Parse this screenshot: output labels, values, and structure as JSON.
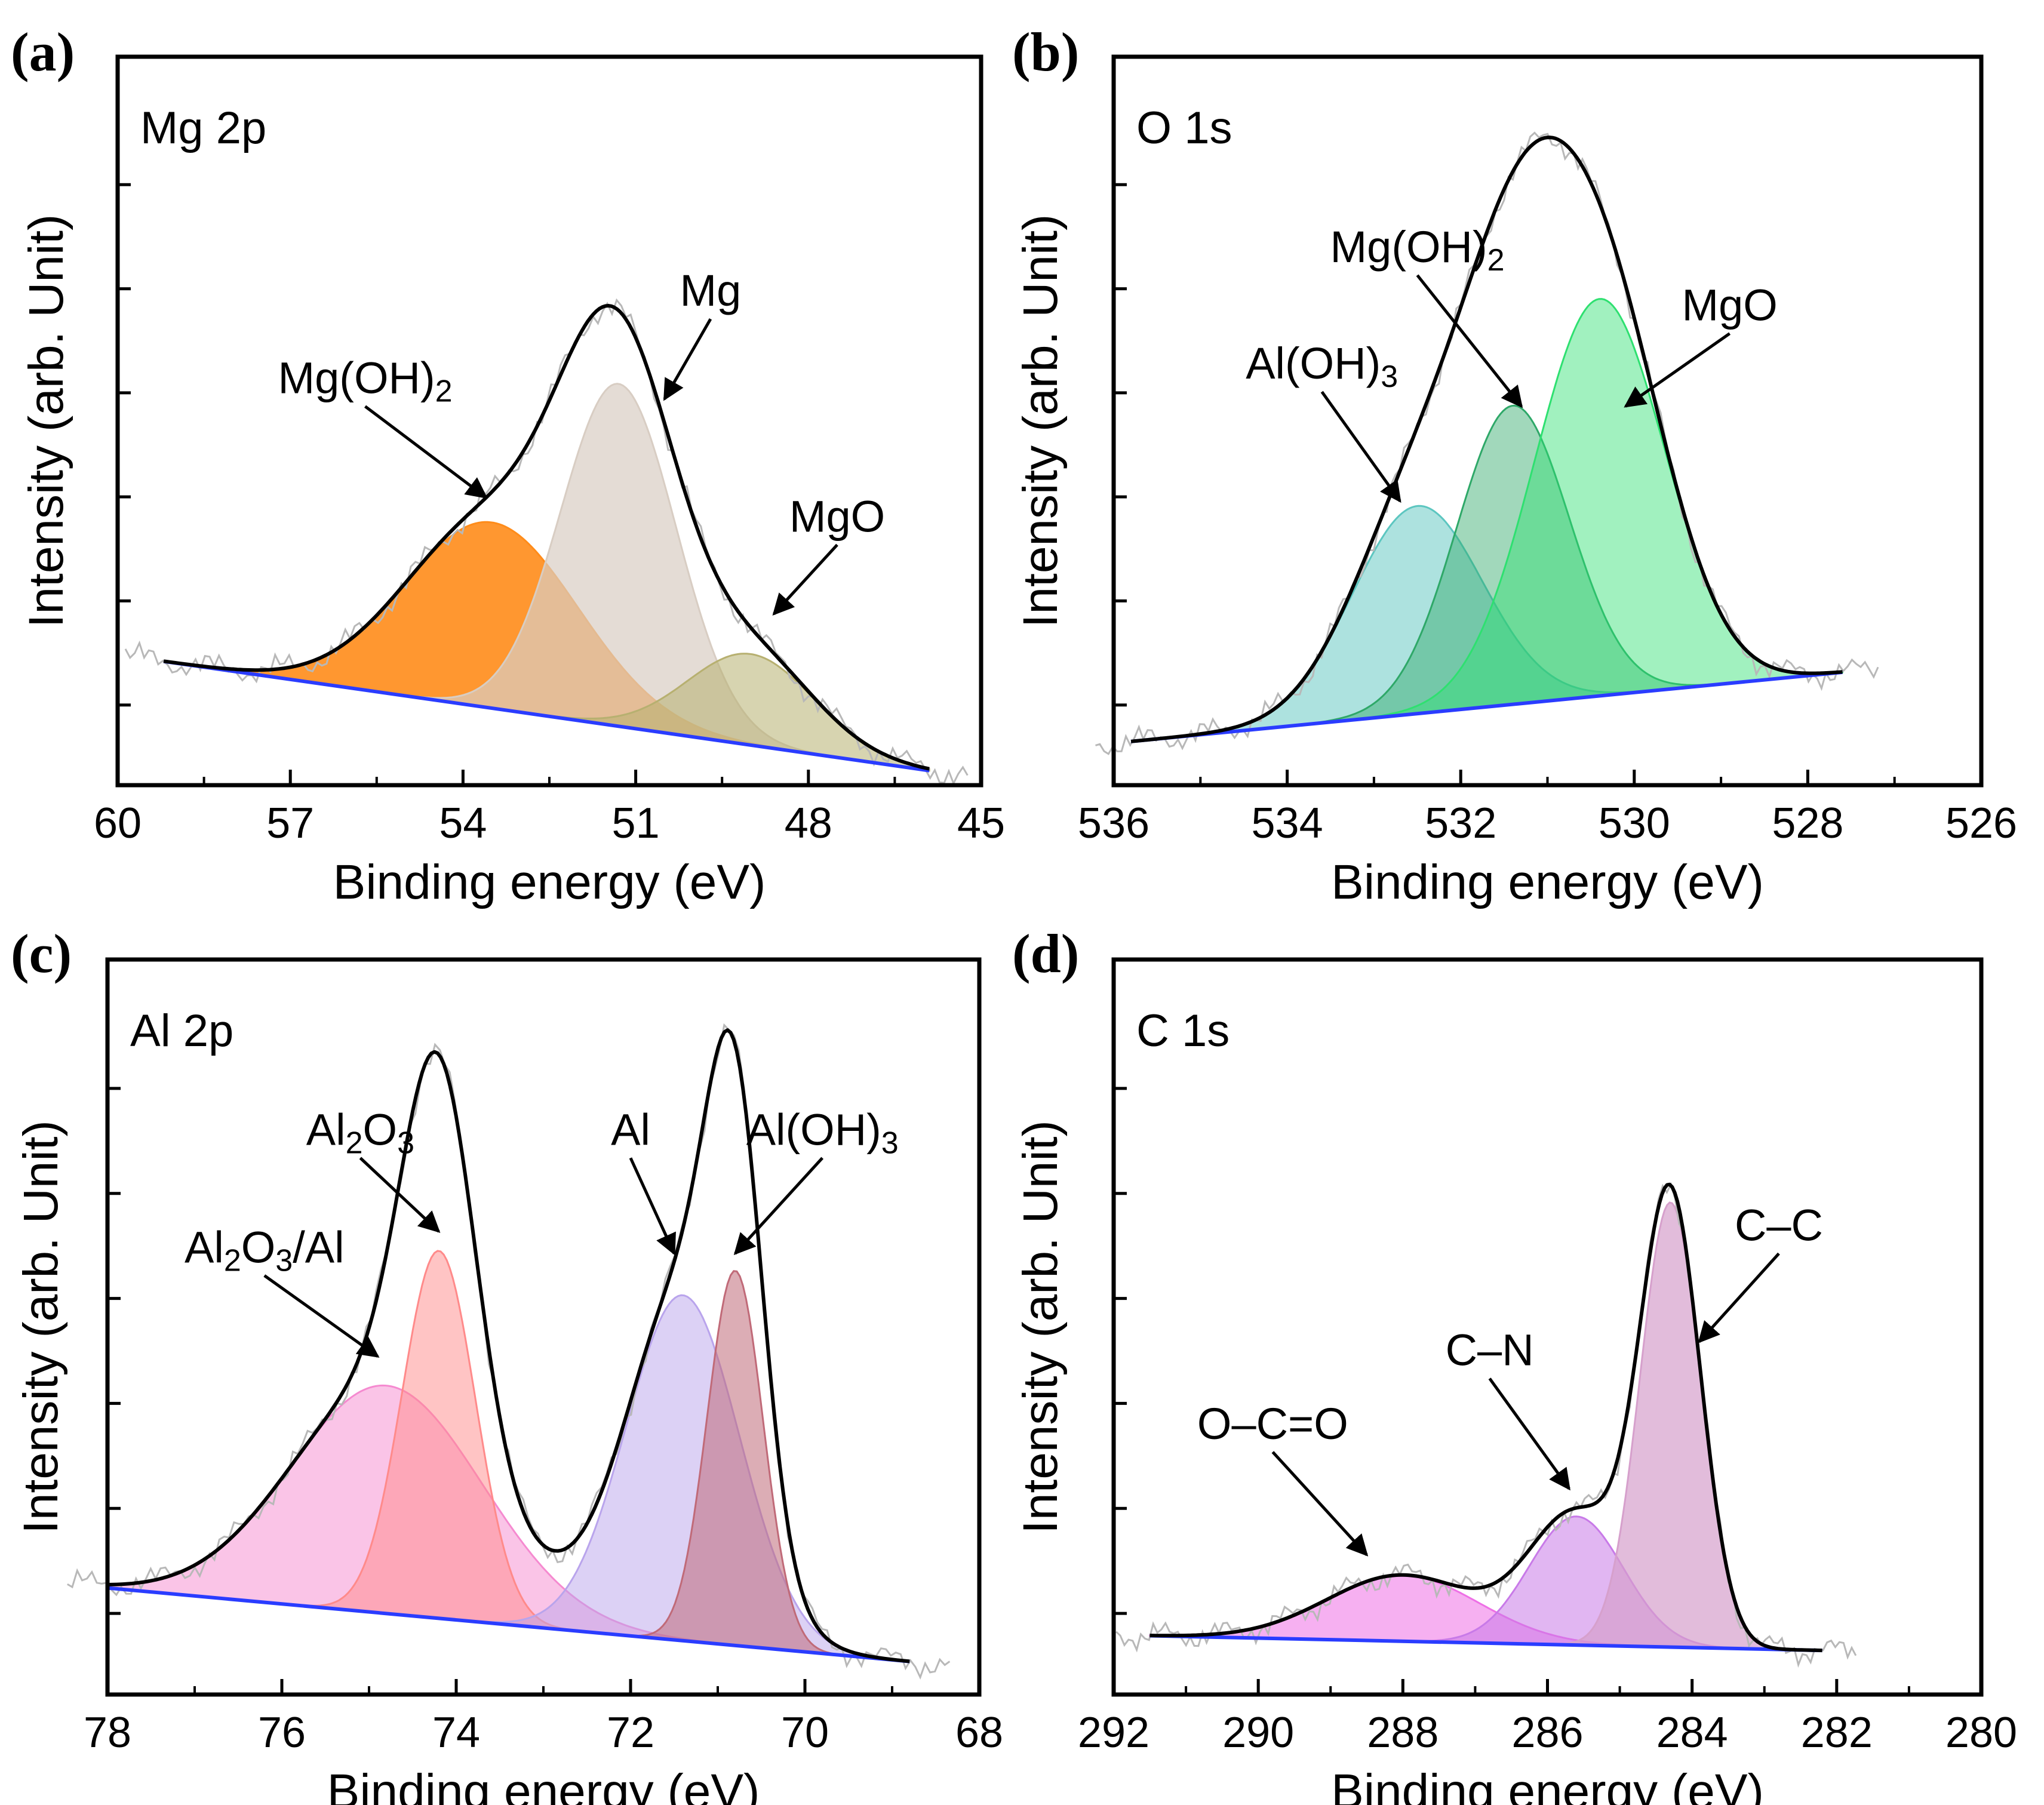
{
  "chart_data": [
    {
      "type": "line",
      "panel": "(a)",
      "element_label": "Mg 2p",
      "xlabel": "Binding energy (eV)",
      "ylabel": "Intensity (arb. Unit)",
      "xlim": [
        60,
        45
      ],
      "xticks": [
        "60",
        "57",
        "54",
        "51",
        "48",
        "45"
      ],
      "range": [
        59.2,
        45.9
      ],
      "bg": [
        0.17,
        0.02
      ],
      "components": [
        {
          "name": "Mg(OH)2",
          "center": 53.5,
          "width": 1.5,
          "height": 0.255,
          "color": "#ff8c1a",
          "opacity": 0.9
        },
        {
          "name": "Mg",
          "center": 51.3,
          "width": 1.0,
          "height": 0.47,
          "color": "#d8cdc3",
          "opacity": 0.7
        },
        {
          "name": "MgO",
          "center": 49.0,
          "width": 1.1,
          "height": 0.125,
          "color": "#b7b070",
          "opacity": 0.55
        }
      ],
      "labels": [
        {
          "segments": [
            {
              "t": "Mg(OH)"
            },
            {
              "t": "2",
              "sub": true
            }
          ],
          "bx": 55.7,
          "by": 0.52,
          "ax": 53.6,
          "ay": 0.395
        },
        {
          "segments": [
            {
              "t": "Mg"
            }
          ],
          "bx": 49.7,
          "by": 0.64,
          "ax": 50.5,
          "ay": 0.53
        },
        {
          "segments": [
            {
              "t": "MgO"
            }
          ],
          "bx": 47.5,
          "by": 0.33,
          "ax": 48.6,
          "ay": 0.235
        }
      ]
    },
    {
      "type": "line",
      "panel": "(b)",
      "element_label": "O 1s",
      "xlabel": "Binding energy (eV)",
      "ylabel": "Intensity (arb. Unit)",
      "xlim": [
        536,
        526
      ],
      "xticks": [
        "536",
        "534",
        "532",
        "530",
        "528",
        "526"
      ],
      "range": [
        535.8,
        527.6
      ],
      "bg": [
        0.06,
        0.155
      ],
      "components": [
        {
          "name": "Al(OH)3",
          "center": 532.5,
          "width": 0.75,
          "height": 0.285,
          "color": "#5cc6c0",
          "opacity": 0.5
        },
        {
          "name": "Mg(OH)2",
          "center": 531.4,
          "width": 0.65,
          "height": 0.41,
          "color": "#2ea868",
          "opacity": 0.45
        },
        {
          "name": "MgO",
          "center": 530.4,
          "width": 0.75,
          "height": 0.545,
          "color": "#2ee070",
          "opacity": 0.45
        }
      ],
      "labels": [
        {
          "segments": [
            {
              "t": "Al(OH)"
            },
            {
              "t": "3",
              "sub": true
            }
          ],
          "bx": 533.6,
          "by": 0.54,
          "ax": 532.7,
          "ay": 0.39
        },
        {
          "segments": [
            {
              "t": "Mg(OH)"
            },
            {
              "t": "2",
              "sub": true
            }
          ],
          "bx": 532.5,
          "by": 0.7,
          "ax": 531.3,
          "ay": 0.52
        },
        {
          "segments": [
            {
              "t": "MgO"
            }
          ],
          "bx": 528.9,
          "by": 0.62,
          "ax": 530.1,
          "ay": 0.52
        }
      ]
    },
    {
      "type": "line",
      "panel": "(c)",
      "element_label": "Al 2p",
      "xlabel": "Binding energy (eV)",
      "ylabel": "Intensity (arb. Unit)",
      "xlim": [
        78,
        68
      ],
      "xticks": [
        "78",
        "76",
        "74",
        "72",
        "70",
        "68"
      ],
      "range": [
        78.0,
        68.8
      ],
      "bg": [
        0.145,
        0.045
      ],
      "components": [
        {
          "name": "Al2O3/Al",
          "center": 74.8,
          "width": 1.1,
          "height": 0.31,
          "color": "#f58ad0",
          "opacity": 0.5
        },
        {
          "name": "Al2O3",
          "center": 74.2,
          "width": 0.42,
          "height": 0.5,
          "color": "#ff8a8a",
          "opacity": 0.5
        },
        {
          "name": "Al",
          "center": 71.4,
          "width": 0.65,
          "height": 0.47,
          "color": "#b9a4ec",
          "opacity": 0.5
        },
        {
          "name": "Al(OH)3",
          "center": 70.8,
          "width": 0.32,
          "height": 0.51,
          "color": "#c06a78",
          "opacity": 0.55
        }
      ],
      "labels": [
        {
          "segments": [
            {
              "t": "Al"
            },
            {
              "t": "2",
              "sub": true
            },
            {
              "t": "O"
            },
            {
              "t": "3",
              "sub": true
            },
            {
              "t": "/Al"
            }
          ],
          "bx": 76.2,
          "by": 0.57,
          "ax": 74.9,
          "ay": 0.46
        },
        {
          "segments": [
            {
              "t": "Al"
            },
            {
              "t": "2",
              "sub": true
            },
            {
              "t": "O"
            },
            {
              "t": "3",
              "sub": true
            }
          ],
          "bx": 75.1,
          "by": 0.73,
          "ax": 74.2,
          "ay": 0.63
        },
        {
          "segments": [
            {
              "t": "Al"
            }
          ],
          "bx": 72.0,
          "by": 0.73,
          "ax": 71.5,
          "ay": 0.6
        },
        {
          "segments": [
            {
              "t": "Al(OH)"
            },
            {
              "t": "3",
              "sub": true
            }
          ],
          "bx": 69.8,
          "by": 0.73,
          "ax": 70.8,
          "ay": 0.6
        }
      ]
    },
    {
      "type": "line",
      "panel": "(d)",
      "element_label": "C 1s",
      "xlabel": "Binding energy (eV)",
      "ylabel": "Intensity (arb. Unit)",
      "xlim": [
        292,
        280
      ],
      "xticks": [
        "292",
        "290",
        "288",
        "286",
        "284",
        "282",
        "280"
      ],
      "range": [
        291.5,
        282.2
      ],
      "bg": [
        0.08,
        0.06
      ],
      "components": [
        {
          "name": "O–C=O",
          "center": 288.0,
          "width": 1.05,
          "height": 0.09,
          "color": "#ee70e6",
          "opacity": 0.55
        },
        {
          "name": "C–N",
          "center": 285.6,
          "width": 0.65,
          "height": 0.175,
          "color": "#c87ae8",
          "opacity": 0.55
        },
        {
          "name": "C–C",
          "center": 284.3,
          "width": 0.42,
          "height": 0.605,
          "color": "#d6a0cc",
          "opacity": 0.7
        }
      ],
      "labels": [
        {
          "segments": [
            {
              "t": "O–C=O"
            }
          ],
          "bx": 289.8,
          "by": 0.33,
          "ax": 288.5,
          "ay": 0.19
        },
        {
          "segments": [
            {
              "t": "C–N"
            }
          ],
          "bx": 286.8,
          "by": 0.43,
          "ax": 285.7,
          "ay": 0.28
        },
        {
          "segments": [
            {
              "t": "C–C"
            }
          ],
          "bx": 282.8,
          "by": 0.6,
          "ax": 283.9,
          "ay": 0.48
        }
      ]
    }
  ]
}
